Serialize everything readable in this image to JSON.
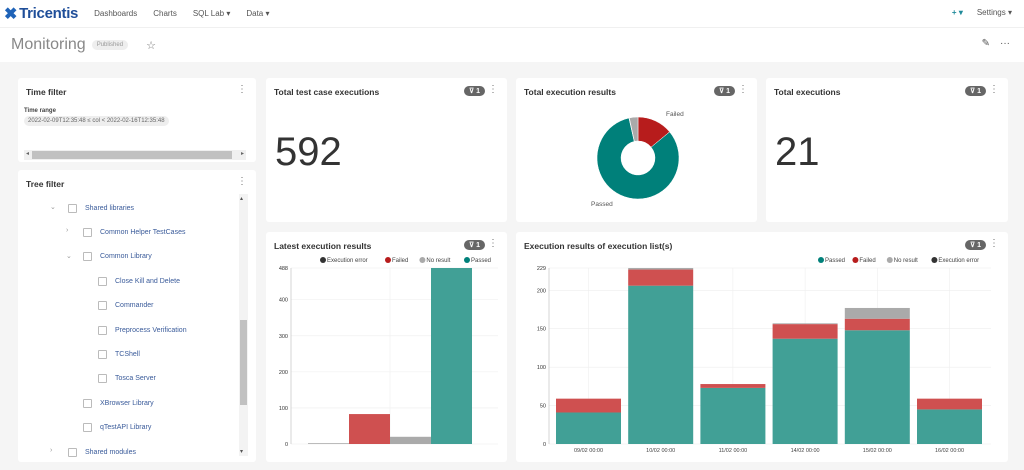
{
  "topbar": {
    "brand": "Tricentis",
    "nav": [
      "Dashboards",
      "Charts",
      "SQL Lab ▾",
      "Data ▾"
    ],
    "add": "+ ▾",
    "settings": "Settings ▾"
  },
  "header": {
    "title": "Monitoring",
    "status": "Published"
  },
  "time_filter": {
    "title": "Time filter",
    "range_label": "Time range",
    "range_value": "2022-02-09T12:35:48 ≤ col < 2022-02-16T12:35:48"
  },
  "tree_filter": {
    "title": "Tree filter",
    "items": [
      {
        "label": "Shared libraries",
        "level": 0,
        "expanded": true
      },
      {
        "label": "Common Helper TestCases",
        "level": 1,
        "expanded": false
      },
      {
        "label": "Common Library",
        "level": 1,
        "expanded": true
      },
      {
        "label": "Close Kill and Delete",
        "level": 2
      },
      {
        "label": "Commander",
        "level": 2
      },
      {
        "label": "Preprocess Verification",
        "level": 2
      },
      {
        "label": "TCShell",
        "level": 2
      },
      {
        "label": "Tosca Server",
        "level": 2
      },
      {
        "label": "XBrowser Library",
        "level": 1
      },
      {
        "label": "qTestAPI Library",
        "level": 1
      },
      {
        "label": "Shared modules",
        "level": 0,
        "expanded": false
      }
    ]
  },
  "cards": {
    "total_test_case": {
      "title": "Total test case executions",
      "value": "592",
      "filters": "1"
    },
    "total_results": {
      "title": "Total execution results",
      "filters": "1"
    },
    "total_executions": {
      "title": "Total executions",
      "value": "21",
      "filters": "1"
    },
    "latest": {
      "title": "Latest execution results",
      "filters": "1"
    },
    "by_list": {
      "title": "Execution results of execution list(s)",
      "filters": "1"
    }
  },
  "colors": {
    "Passed": "#41a096",
    "Failed": "#cf5050",
    "No result": "#aaaaaa",
    "Execution error": "#333333",
    "pie_passed": "#00807a",
    "pie_failed": "#b71c1c"
  },
  "chart_data": [
    {
      "type": "pie",
      "donut": true,
      "slices": [
        {
          "name": "Passed",
          "value": 488
        },
        {
          "name": "Failed",
          "value": 83
        },
        {
          "name": "No result",
          "value": 20
        },
        {
          "name": "Execution error",
          "value": 1
        }
      ],
      "labels_shown": [
        "Failed",
        "Passed"
      ]
    },
    {
      "type": "bar",
      "legend": [
        "Execution error",
        "Failed",
        "No result",
        "Passed"
      ],
      "legend_position": "top",
      "categories": [
        "Execution error",
        "Failed",
        "No result",
        "Passed"
      ],
      "values": [
        1,
        83,
        20,
        488
      ],
      "ylim": [
        0,
        488
      ],
      "yticks": [
        0,
        100,
        200,
        300,
        400,
        488
      ],
      "grid": true
    },
    {
      "type": "bar",
      "stacked": true,
      "legend": [
        "Passed",
        "Failed",
        "No result",
        "Execution error"
      ],
      "legend_position": "top-right",
      "categories": [
        "09/02 00:00",
        "10/02 00:00",
        "11/02 00:00",
        "14/02 00:00",
        "15/02 00:00",
        "16/02 00:00"
      ],
      "series": [
        {
          "name": "Passed",
          "values": [
            41,
            206,
            73,
            137,
            148,
            45
          ]
        },
        {
          "name": "Failed",
          "values": [
            18,
            21,
            5,
            19,
            15,
            14
          ]
        },
        {
          "name": "No result",
          "values": [
            0,
            2,
            0,
            1,
            14,
            0
          ]
        },
        {
          "name": "Execution error",
          "values": [
            0,
            0,
            0,
            0,
            0,
            0
          ]
        }
      ],
      "ylim": [
        0,
        229
      ],
      "yticks": [
        0,
        50,
        100,
        150,
        200,
        229
      ],
      "grid": true
    }
  ]
}
